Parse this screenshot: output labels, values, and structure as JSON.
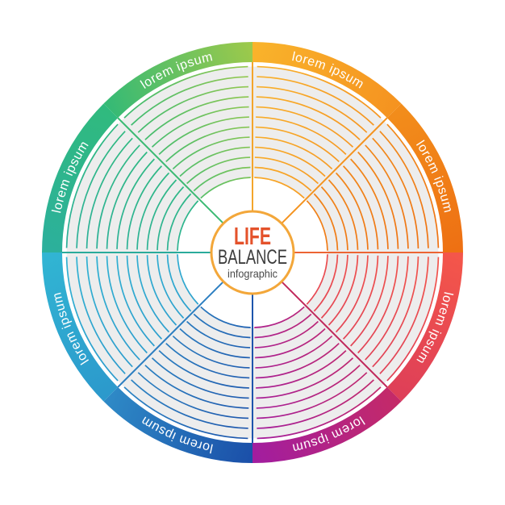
{
  "center": {
    "title": "LIFE",
    "subtitle": "BALANCE",
    "caption": "infographic",
    "title_color": "#e4522b",
    "subtitle_color": "#3d3d3d",
    "caption_color": "#4a4a4a",
    "ring_color": "#f3a73a"
  },
  "wheel": {
    "background_color": "#ffffff",
    "grid_fill_color": "#ededed",
    "ring_count": 12,
    "segments": [
      {
        "position": "top-right",
        "label": "lorem ipsum",
        "start_color": "#f9b32b",
        "end_color": "#f59320"
      },
      {
        "position": "right-upper",
        "label": "lorem ipsum",
        "start_color": "#f28d1b",
        "end_color": "#ee7013"
      },
      {
        "position": "right-lower",
        "label": "lorem ipsum",
        "start_color": "#f4564a",
        "end_color": "#de3f58"
      },
      {
        "position": "bottom-right",
        "label": "lorem ipsum",
        "start_color": "#c42a68",
        "end_color": "#a21d9f"
      },
      {
        "position": "bottom-left",
        "label": "lorem ipsum",
        "start_color": "#1b50a9",
        "end_color": "#2e89c6"
      },
      {
        "position": "left-lower",
        "label": "lorem ipsum",
        "start_color": "#2c99cc",
        "end_color": "#31b5d3"
      },
      {
        "position": "left-upper",
        "label": "lorem ipsum",
        "start_color": "#2cb09c",
        "end_color": "#30ba7e"
      },
      {
        "position": "top-left",
        "label": "lorem ipsum",
        "start_color": "#36ba75",
        "end_color": "#9cc94b"
      }
    ],
    "spoke_colors": [
      "#f3a52b",
      "#f49421",
      "#ec6433",
      "#c12a5c",
      "#1d55ac",
      "#2d7fc1",
      "#2aab9b",
      "#3cba74"
    ]
  }
}
